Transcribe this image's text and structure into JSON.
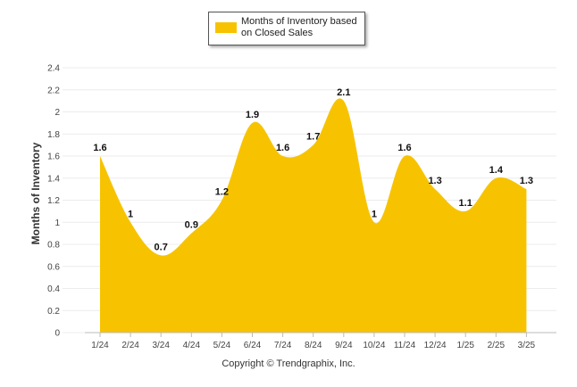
{
  "chart_data": {
    "type": "area",
    "categories": [
      "1/24",
      "2/24",
      "3/24",
      "4/24",
      "5/24",
      "6/24",
      "7/24",
      "8/24",
      "9/24",
      "10/24",
      "11/24",
      "12/24",
      "1/25",
      "2/25",
      "3/25"
    ],
    "series": [
      {
        "name": "Months of Inventory based on Closed Sales",
        "values": [
          1.6,
          1,
          0.7,
          0.9,
          1.2,
          1.9,
          1.6,
          1.7,
          2.1,
          1,
          1.6,
          1.3,
          1.1,
          1.4,
          1.3
        ],
        "value_labels": [
          "1.6",
          "1",
          "0.7",
          "0.9",
          "1.2",
          "1.9",
          "1.6",
          "1.7",
          "2.1",
          "1",
          "1.6",
          "1.3",
          "1.1",
          "1.4",
          "1.3"
        ],
        "color": "#f7c300"
      }
    ],
    "ylabel": "Months of Inventory",
    "ylim": [
      0,
      2.4
    ],
    "yticks": [
      "0",
      "0.2",
      "0.4",
      "0.6",
      "0.8",
      "1",
      "1.2",
      "1.4",
      "1.6",
      "1.8",
      "2",
      "2.2",
      "2.4"
    ],
    "grid": true,
    "legend_position": "top-center"
  },
  "legend": {
    "label": "Months of Inventory based on Closed Sales"
  },
  "copyright": "Copyright © Trendgraphix, Inc."
}
